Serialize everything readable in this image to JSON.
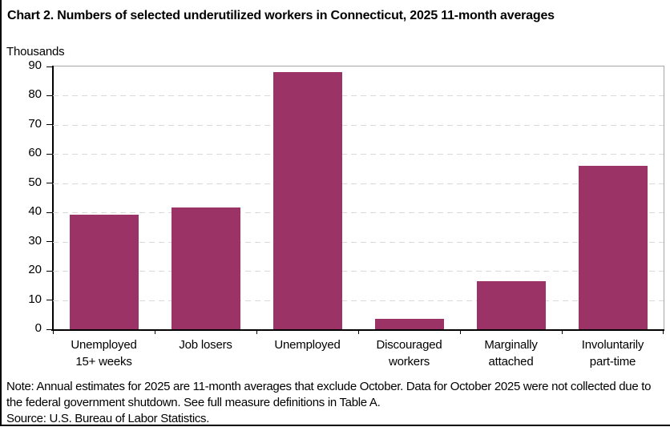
{
  "chart_data": {
    "type": "bar",
    "title": "Chart 2. Numbers of selected underutilized workers in Connecticut, 2025 11-month averages",
    "units_label": "Thousands",
    "ylabel": "Thousands",
    "xlabel": "",
    "categories": [
      "Unemployed\n15+ weeks",
      "Job losers",
      "Unemployed",
      "Discouraged\nworkers",
      "Marginally\nattached",
      "Involuntarily\npart-time"
    ],
    "values": [
      39.2,
      41.8,
      88.0,
      3.5,
      16.6,
      56.0
    ],
    "ylim": [
      0,
      90
    ],
    "yticks": [
      0,
      10,
      20,
      30,
      40,
      50,
      60,
      70,
      80,
      90
    ],
    "grid": "horizontal-dashed",
    "legend": "none",
    "colors": {
      "bar": "#9C3366",
      "grid_dashed": "#d9d9d9",
      "grid_solid": "#a6a6a6",
      "axis": "#000000",
      "text": "#000000"
    }
  },
  "footer": {
    "note": "Note: Annual estimates for 2025 are 11-month averages that exclude October. Data for October 2025 were not collected due to the federal government shutdown. See full measure definitions in Table A.",
    "source": "Source: U.S. Bureau of Labor Statistics."
  }
}
